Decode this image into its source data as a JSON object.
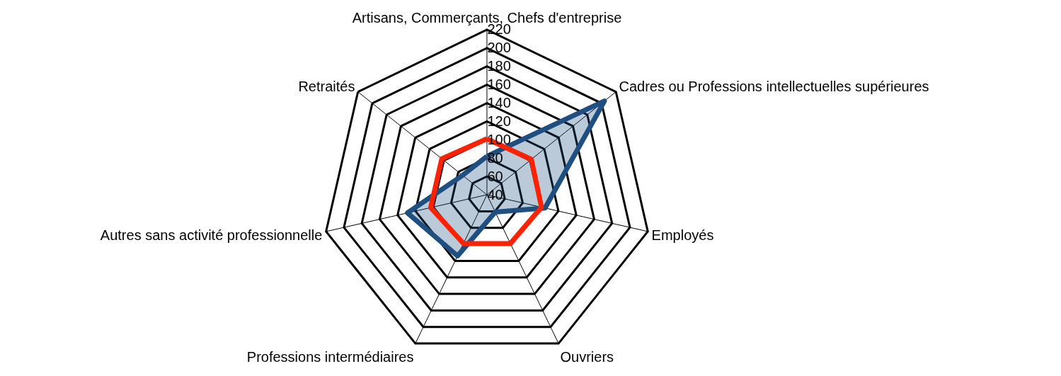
{
  "chart_data": {
    "type": "radar",
    "categories": [
      "Artisans, Commerçants, Chefs d'entreprise",
      "Cadres ou Professions intellectuelles supérieures",
      "Employés",
      "Ouvriers",
      "Professions intermédiaires",
      "Autres sans activité professionnelle",
      "Retraités"
    ],
    "series": [
      {
        "color": "#1f4e80",
        "values": [
          82,
          204,
          105,
          61,
          114,
          129,
          74
        ]
      },
      {
        "color": "#ff2200",
        "values": [
          101,
          102,
          101,
          99,
          99,
          103,
          103
        ]
      }
    ],
    "ylim": [
      40,
      220
    ],
    "yticks": [
      40,
      60,
      80,
      100,
      120,
      140,
      160,
      180,
      200,
      220
    ],
    "grid": true
  }
}
